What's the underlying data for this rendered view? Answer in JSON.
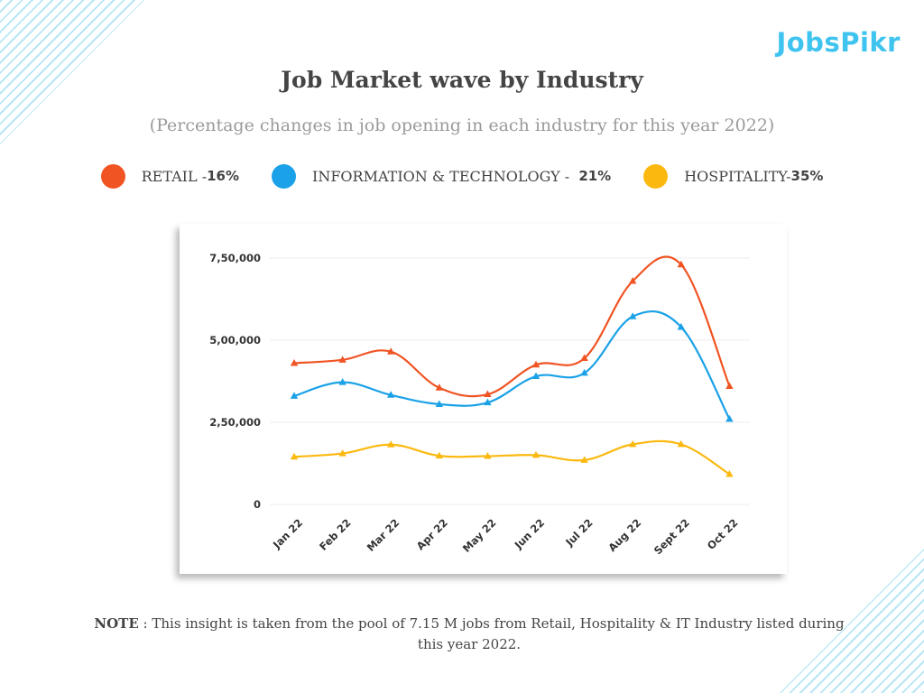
{
  "logo": {
    "text": "JobsPikr"
  },
  "title": "Job Market wave by Industry",
  "subtitle": "(Percentage changes in job opening in each industry for this year 2022)",
  "legend": [
    {
      "label": "RETAIL - ",
      "pct": "16%",
      "color": "#f05423"
    },
    {
      "label": "INFORMATION & TECHNOLOGY -  ",
      "pct": "21%",
      "color": "#1aa1e8"
    },
    {
      "label": "HOSPITALITY- ",
      "pct": "35%",
      "color": "#fbb910"
    }
  ],
  "note": {
    "strong": "NOTE",
    "text": " : This insight is taken from the pool of 7.15 M jobs from Retail, Hospitality & IT Industry listed during this year 2022."
  },
  "chart_data": {
    "type": "line",
    "categories": [
      "Jan 22",
      "Feb 22",
      "Mar 22",
      "Apr 22",
      "May 22",
      "Jun 22",
      "Jul 22",
      "Aug 22",
      "Sept 22",
      "Oct 22"
    ],
    "yticks": [
      "0",
      "2,50,000",
      "5,00,000",
      "7,50,000"
    ],
    "ytick_values": [
      0,
      250000,
      500000,
      750000
    ],
    "ylim": [
      0,
      750000
    ],
    "grid": true,
    "series": [
      {
        "name": "RETAIL",
        "color": "#f05423",
        "values": [
          430000,
          440000,
          465000,
          355000,
          335000,
          425000,
          445000,
          680000,
          730000,
          360000
        ]
      },
      {
        "name": "INFORMATION & TECHNOLOGY",
        "color": "#1aa1e8",
        "values": [
          330000,
          372000,
          333000,
          305000,
          310000,
          390000,
          400000,
          572000,
          540000,
          260000
        ]
      },
      {
        "name": "HOSPITALITY",
        "color": "#fbb910",
        "values": [
          145000,
          155000,
          182000,
          148000,
          147000,
          150000,
          135000,
          183000,
          183000,
          92000
        ]
      }
    ]
  }
}
